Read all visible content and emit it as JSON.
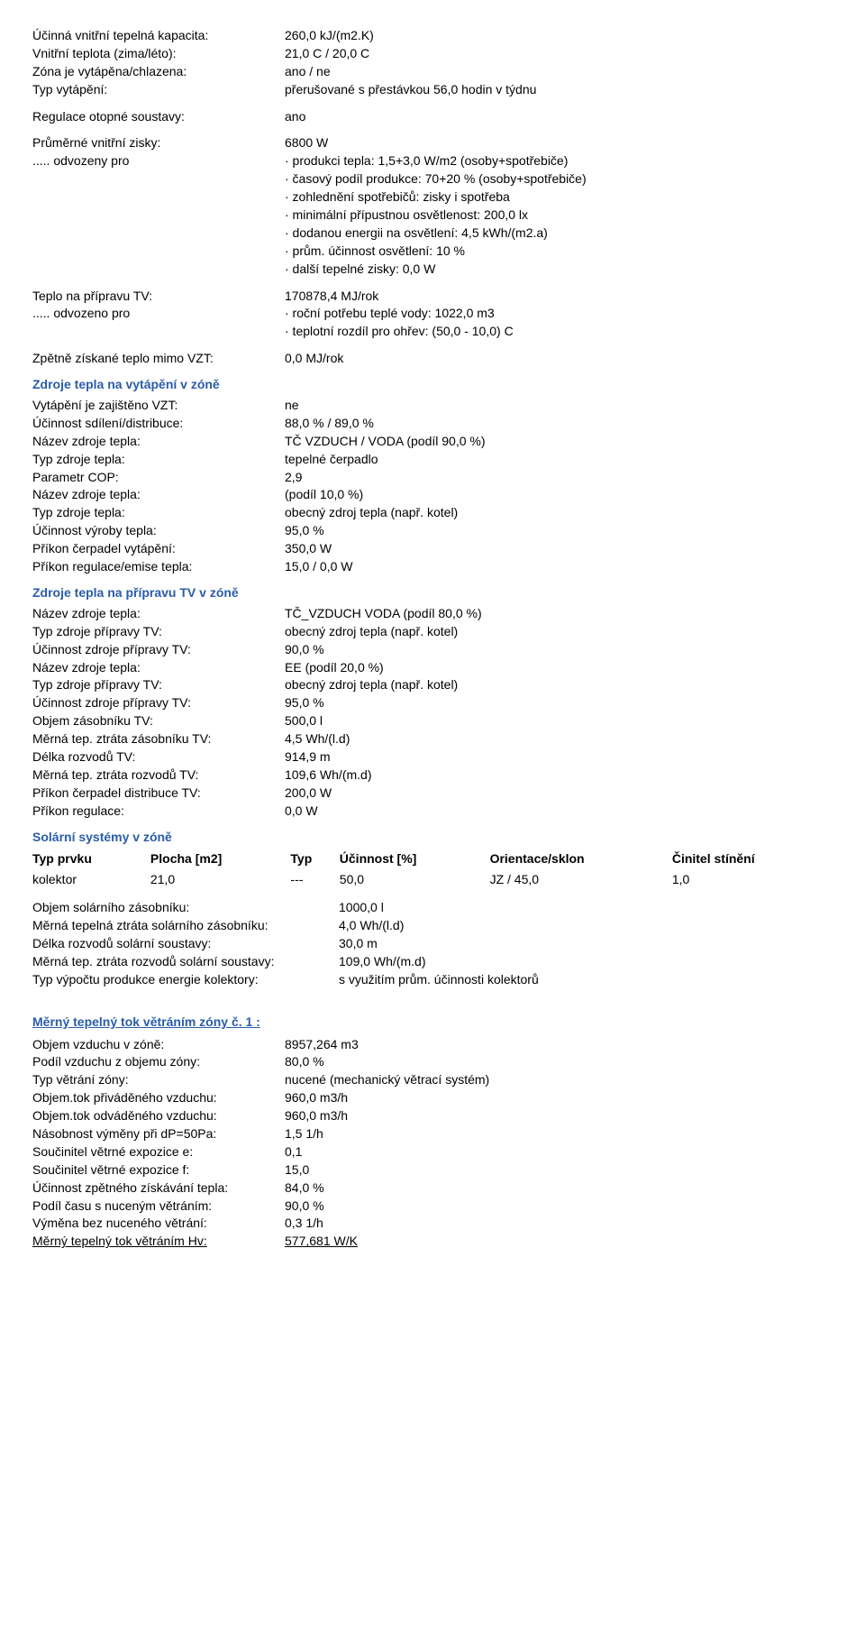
{
  "block1": {
    "r1": {
      "l": "Účinná vnitřní tepelná kapacita:",
      "v": "260,0 kJ/(m2.K)"
    },
    "r2": {
      "l": "Vnitřní teplota (zima/léto):",
      "v": "21,0 C / 20,0 C"
    },
    "r3": {
      "l": "Zóna je vytápěna/chlazena:",
      "v": "ano / ne"
    },
    "r4": {
      "l": "Typ vytápění:",
      "v": "přerušované s přestávkou 56,0 hodin v týdnu"
    },
    "r5": {
      "l": "Regulace otopné soustavy:",
      "v": "ano"
    },
    "r6": {
      "l": "Průměrné vnitřní zisky:",
      "v": "6800 W"
    },
    "r7": {
      "l": "..... odvozeny pro",
      "v": "· produkci tepla: 1,5+3,0 W/m2 (osoby+spotřebiče)"
    },
    "sub1": [
      "· časový podíl produkce: 70+20 % (osoby+spotřebiče)",
      "· zohlednění spotřebičů: zisky i spotřeba",
      "· minimální přípustnou osvětlenost: 200,0 lx",
      "· dodanou energii na osvětlení: 4,5 kWh/(m2.a)",
      "· prům. účinnost osvětlení: 10 %",
      "· další tepelné zisky: 0,0 W"
    ],
    "r8": {
      "l": "Teplo na přípravu TV:",
      "v": "170878,4 MJ/rok"
    },
    "r9": {
      "l": "..... odvozeno pro",
      "v": "· roční potřebu teplé vody: 1022,0 m3"
    },
    "sub2": [
      "· teplotní rozdíl pro ohřev: (50,0 - 10,0) C"
    ],
    "r10": {
      "l": "Zpětně získané teplo mimo VZT:",
      "v": "0,0 MJ/rok"
    }
  },
  "sec_heat_zone_title": "Zdroje tepla na vytápění v zóně",
  "heat_zone": {
    "r1": {
      "l": "Vytápění je zajištěno VZT:",
      "v": "ne"
    },
    "r2": {
      "l": "Účinnost sdílení/distribuce:",
      "v": "88,0 % / 89,0 %"
    },
    "r3": {
      "l": "Název zdroje tepla:",
      "v": "TČ VZDUCH / VODA (podíl 90,0 %)"
    },
    "r4": {
      "l": "Typ zdroje tepla:",
      "v": "tepelné čerpadlo"
    },
    "r5": {
      "l": "Parametr COP:",
      "v": "2,9"
    },
    "r6": {
      "l": "Název zdroje tepla:",
      "v": " (podíl 10,0 %)"
    },
    "r7": {
      "l": "Typ zdroje tepla:",
      "v": "obecný zdroj tepla (např. kotel)"
    },
    "r8": {
      "l": "Účinnost výroby tepla:",
      "v": "95,0 %"
    },
    "r9": {
      "l": "Příkon čerpadel vytápění:",
      "v": "350,0 W"
    },
    "r10": {
      "l": "Příkon regulace/emise tepla:",
      "v": "15,0 / 0,0 W"
    }
  },
  "sec_tv_title": "Zdroje tepla na přípravu TV v zóně",
  "tv": {
    "r1": {
      "l": "Název zdroje tepla:",
      "v": "TČ_VZDUCH VODA (podíl 80,0 %)"
    },
    "r2": {
      "l": "Typ zdroje přípravy TV:",
      "v": "obecný zdroj tepla (např. kotel)"
    },
    "r3": {
      "l": "Účinnost zdroje přípravy TV:",
      "v": "90,0 %"
    },
    "r4": {
      "l": "Název zdroje tepla:",
      "v": "EE (podíl 20,0 %)"
    },
    "r5": {
      "l": "Typ zdroje přípravy TV:",
      "v": "obecný zdroj tepla (např. kotel)"
    },
    "r6": {
      "l": "Účinnost zdroje přípravy TV:",
      "v": "95,0 %"
    },
    "r7": {
      "l": "Objem zásobníku TV:",
      "v": "500,0 l"
    },
    "r8": {
      "l": "Měrná tep. ztráta zásobníku TV:",
      "v": "4,5 Wh/(l.d)"
    },
    "r9": {
      "l": "Délka rozvodů TV:",
      "v": "914,9 m"
    },
    "r10": {
      "l": "Měrná tep. ztráta rozvodů TV:",
      "v": "109,6 Wh/(m.d)"
    },
    "r11": {
      "l": "Příkon čerpadel distribuce TV:",
      "v": "200,0 W"
    },
    "r12": {
      "l": "Příkon regulace:",
      "v": "0,0 W"
    }
  },
  "sec_solar_title": "Solární systémy v zóně",
  "solar_table": {
    "headers": [
      "Typ prvku",
      "Plocha [m2]",
      "Typ",
      "Účinnost [%]",
      "Orientace/sklon",
      "Činitel stínění"
    ],
    "row": [
      "kolektor",
      "21,0",
      "---",
      "50,0",
      "JZ / 45,0",
      "1,0"
    ]
  },
  "solar": {
    "r1": {
      "l": "Objem solárního zásobníku:",
      "v": "1000,0 l"
    },
    "r2": {
      "l": "Měrná tepelná ztráta solárního zásobníku:",
      "v": "4,0 Wh/(l.d)"
    },
    "r3": {
      "l": "Délka rozvodů solární soustavy:",
      "v": "30,0 m"
    },
    "r4": {
      "l": "Měrná tep. ztráta rozvodů solární soustavy:",
      "v": "109,0 Wh/(m.d)"
    },
    "r5": {
      "l": "Typ výpočtu produkce energie kolektory:",
      "v": "s využitím prům. účinnosti kolektorů"
    }
  },
  "sec_vent_title": "Měrný tepelný tok větráním zóny č. 1 :",
  "vent": {
    "r1": {
      "l": "Objem vzduchu v zóně:",
      "v": "8957,264 m3"
    },
    "r2": {
      "l": "Podíl vzduchu z objemu zóny:",
      "v": "80,0 %"
    },
    "r3": {
      "l": "Typ větrání zóny:",
      "v": " nucené (mechanický větrací systém)"
    },
    "r4": {
      "l": "Objem.tok přiváděného vzduchu:",
      "v": "960,0 m3/h"
    },
    "r5": {
      "l": "Objem.tok odváděného vzduchu:",
      "v": "960,0 m3/h"
    },
    "r6": {
      "l": "Násobnost výměny při dP=50Pa:",
      "v": "1,5 1/h"
    },
    "r7": {
      "l": "Součinitel větrné expozice e:",
      "v": "0,1"
    },
    "r8": {
      "l": "Součinitel větrné expozice f:",
      "v": "15,0"
    },
    "r9": {
      "l": "Účinnost zpětného získávání tepla:",
      "v": "84,0 %"
    },
    "r10": {
      "l": "Podíl času s nuceným větráním:",
      "v": "90,0 %"
    },
    "r11": {
      "l": "Výměna bez nuceného větrání:",
      "v": "0,3 1/h"
    },
    "r12": {
      "l": "Měrný tepelný tok větráním Hv:",
      "v": "577,681 W/K"
    }
  }
}
